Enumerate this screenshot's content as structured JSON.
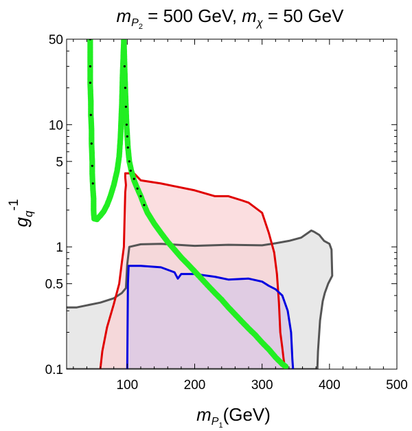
{
  "chart_data": {
    "type": "area",
    "title": {
      "m_lead": "m",
      "m_sub": "P",
      "m_subsub": "2",
      "mid": " = 500 GeV, ",
      "chi": "m",
      "chi_sub": "χ",
      "end": " = 50 GeV"
    },
    "xlabel": {
      "m": "m",
      "sub": "P",
      "subsub": "1",
      "unit": "(GeV)"
    },
    "ylabel": {
      "g": "g",
      "sub": "q",
      "sup": "-1"
    },
    "xlim": [
      10,
      500
    ],
    "ylim": [
      0.1,
      50
    ],
    "yscale": "log",
    "xticks": [
      100,
      200,
      300,
      400,
      500
    ],
    "yticks": [
      0.1,
      0.5,
      1,
      5,
      10,
      50
    ],
    "ytick_labels": [
      "0.1",
      "0.5",
      "1",
      "5",
      "10",
      "50"
    ],
    "regions": [
      {
        "color": "#555555",
        "fill": "#e8e8e8",
        "points": [
          [
            10,
            0.32
          ],
          [
            25,
            0.32
          ],
          [
            60,
            0.35
          ],
          [
            80,
            0.38
          ],
          [
            92,
            0.42
          ],
          [
            98,
            0.46
          ],
          [
            100,
            0.72
          ],
          [
            103,
            1.0
          ],
          [
            120,
            1.05
          ],
          [
            150,
            1.06
          ],
          [
            200,
            1.02
          ],
          [
            250,
            1.04
          ],
          [
            300,
            1.03
          ],
          [
            320,
            1.07
          ],
          [
            340,
            1.12
          ],
          [
            358,
            1.19
          ],
          [
            368,
            1.3
          ],
          [
            373,
            1.36
          ],
          [
            377,
            1.33
          ],
          [
            385,
            1.25
          ],
          [
            392,
            1.12
          ],
          [
            400,
            1.06
          ],
          [
            403,
            0.95
          ],
          [
            404,
            0.58
          ],
          [
            398,
            0.5
          ],
          [
            393,
            0.42
          ],
          [
            390,
            0.36
          ],
          [
            386,
            0.25
          ],
          [
            383,
            0.14
          ],
          [
            382,
            0.1
          ],
          [
            10,
            0.1
          ]
        ]
      },
      {
        "color": "#e00000",
        "fill": "#f9d3d5",
        "points": [
          [
            60,
            0.1
          ],
          [
            63,
            0.14
          ],
          [
            70,
            0.22
          ],
          [
            80,
            0.34
          ],
          [
            88,
            0.5
          ],
          [
            92,
            0.75
          ],
          [
            95,
            1.0
          ],
          [
            96,
            1.7
          ],
          [
            97,
            2.8
          ],
          [
            98,
            3.2
          ],
          [
            97,
            3.7
          ],
          [
            97,
            4.0
          ],
          [
            110,
            4.0
          ],
          [
            120,
            3.5
          ],
          [
            150,
            3.3
          ],
          [
            200,
            2.9
          ],
          [
            230,
            2.6
          ],
          [
            250,
            2.6
          ],
          [
            270,
            2.4
          ],
          [
            280,
            2.3
          ],
          [
            300,
            1.9
          ],
          [
            310,
            1.3
          ],
          [
            318,
            0.9
          ],
          [
            322,
            0.6
          ],
          [
            325,
            0.35
          ],
          [
            327,
            0.2
          ],
          [
            330,
            0.15
          ],
          [
            332,
            0.12
          ],
          [
            333,
            0.11
          ],
          [
            333,
            0.1
          ]
        ]
      },
      {
        "color": "#0000e0",
        "fill": "#d8c8e6",
        "points": [
          [
            100,
            0.1
          ],
          [
            101,
            0.5
          ],
          [
            102,
            0.7
          ],
          [
            120,
            0.7
          ],
          [
            150,
            0.68
          ],
          [
            170,
            0.62
          ],
          [
            175,
            0.55
          ],
          [
            180,
            0.6
          ],
          [
            200,
            0.6
          ],
          [
            230,
            0.57
          ],
          [
            250,
            0.54
          ],
          [
            280,
            0.55
          ],
          [
            300,
            0.52
          ],
          [
            310,
            0.48
          ],
          [
            320,
            0.45
          ],
          [
            330,
            0.4
          ],
          [
            338,
            0.3
          ],
          [
            343,
            0.2
          ],
          [
            345,
            0.12
          ],
          [
            346,
            0.1
          ]
        ]
      }
    ],
    "scatter_series": [
      {
        "name": "",
        "color": "#22ee22",
        "points": [
          [
            45,
            50
          ],
          [
            45,
            30
          ],
          [
            45,
            22
          ],
          [
            46,
            15
          ],
          [
            46,
            12
          ],
          [
            47,
            9
          ],
          [
            47,
            7
          ],
          [
            48,
            5
          ],
          [
            48,
            4
          ],
          [
            49,
            3
          ],
          [
            50,
            2.5
          ],
          [
            50,
            2
          ],
          [
            50.5,
            1.8
          ],
          [
            51,
            1.7
          ],
          [
            55,
            1.68
          ],
          [
            60,
            1.8
          ],
          [
            65,
            1.95
          ],
          [
            70,
            2.2
          ],
          [
            75,
            2.6
          ],
          [
            80,
            3.2
          ],
          [
            85,
            4.2
          ],
          [
            88,
            5.5
          ],
          [
            90,
            8
          ],
          [
            92,
            15
          ],
          [
            93,
            25
          ],
          [
            95,
            50
          ],
          [
            96,
            30
          ],
          [
            97,
            20
          ],
          [
            98,
            14
          ],
          [
            99,
            10
          ],
          [
            100,
            8
          ],
          [
            101,
            6.5
          ],
          [
            103,
            5
          ],
          [
            106,
            4.2
          ],
          [
            110,
            3.5
          ],
          [
            115,
            3
          ],
          [
            120,
            2.6
          ],
          [
            125,
            2.2
          ],
          [
            130,
            1.9
          ],
          [
            140,
            1.55
          ],
          [
            150,
            1.3
          ],
          [
            160,
            1.1
          ],
          [
            170,
            0.95
          ],
          [
            180,
            0.82
          ],
          [
            190,
            0.72
          ],
          [
            200,
            0.63
          ],
          [
            210,
            0.55
          ],
          [
            220,
            0.48
          ],
          [
            230,
            0.42
          ],
          [
            240,
            0.37
          ],
          [
            250,
            0.32
          ],
          [
            260,
            0.28
          ],
          [
            270,
            0.245
          ],
          [
            280,
            0.215
          ],
          [
            290,
            0.19
          ],
          [
            300,
            0.165
          ],
          [
            310,
            0.145
          ],
          [
            320,
            0.125
          ],
          [
            330,
            0.11
          ],
          [
            335,
            0.105
          ]
        ]
      }
    ],
    "marker_points": [
      [
        45,
        50
      ],
      [
        45,
        30
      ],
      [
        45,
        22
      ],
      [
        46,
        12
      ],
      [
        47,
        7
      ],
      [
        48,
        4.6
      ],
      [
        49,
        3.3
      ],
      [
        96,
        30
      ],
      [
        97,
        20
      ],
      [
        98,
        14
      ],
      [
        99,
        10
      ],
      [
        100,
        8
      ],
      [
        101,
        6.5
      ],
      [
        103,
        5
      ],
      [
        105,
        4.2
      ],
      [
        110,
        3.6
      ],
      [
        115,
        3
      ],
      [
        120,
        2.6
      ],
      [
        125,
        2.2
      ]
    ]
  }
}
